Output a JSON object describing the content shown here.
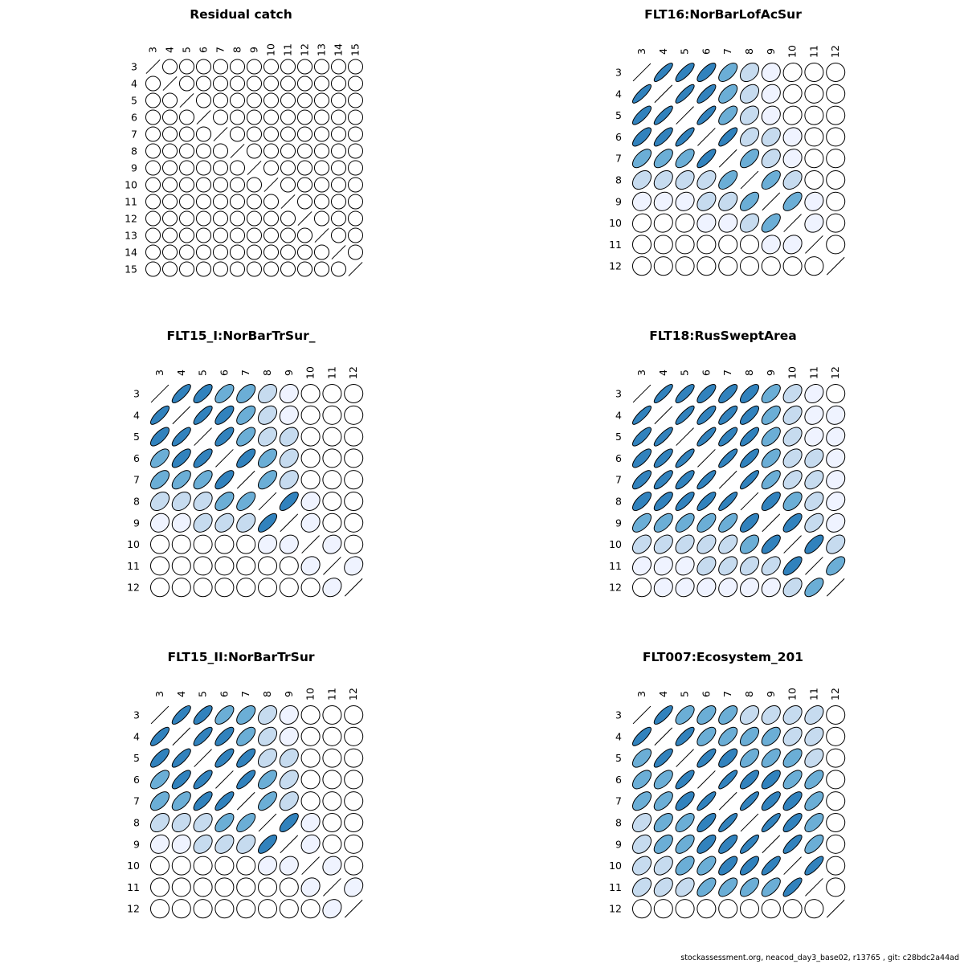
{
  "footer": "stockassessment.org, neacod_day3_base02, r13765 , git: c28bdc2a44ad",
  "palette": {
    "outline": "#000000",
    "levels": [
      "#ffffff",
      "#eff3ff",
      "#c6dbef",
      "#6baed6",
      "#3182bd"
    ]
  },
  "chart_data": [
    {
      "type": "heatmap",
      "subtype": "correlation-ellipse-matrix",
      "title": "Residual catch",
      "labels": [
        "3",
        "4",
        "5",
        "6",
        "7",
        "8",
        "9",
        "10",
        "11",
        "12",
        "13",
        "14",
        "15"
      ],
      "correlations": [
        [
          1,
          0,
          0,
          0,
          0,
          0,
          0,
          0,
          0,
          0,
          0,
          0,
          0
        ],
        [
          0,
          1,
          0,
          0,
          0,
          0,
          0,
          0,
          0,
          0,
          0,
          0,
          0
        ],
        [
          0,
          0,
          1,
          0,
          0,
          0,
          0,
          0,
          0,
          0,
          0,
          0,
          0
        ],
        [
          0,
          0,
          0,
          1,
          0,
          0,
          0,
          0,
          0,
          0,
          0,
          0,
          0
        ],
        [
          0,
          0,
          0,
          0,
          1,
          0,
          0,
          0,
          0,
          0,
          0,
          0,
          0
        ],
        [
          0,
          0,
          0,
          0,
          0,
          1,
          0,
          0,
          0,
          0,
          0,
          0,
          0
        ],
        [
          0,
          0,
          0,
          0,
          0,
          0,
          1,
          0,
          0,
          0,
          0,
          0,
          0
        ],
        [
          0,
          0,
          0,
          0,
          0,
          0,
          0,
          1,
          0,
          0,
          0,
          0,
          0
        ],
        [
          0,
          0,
          0,
          0,
          0,
          0,
          0,
          0,
          1,
          0,
          0,
          0,
          0
        ],
        [
          0,
          0,
          0,
          0,
          0,
          0,
          0,
          0,
          0,
          1,
          0,
          0,
          0
        ],
        [
          0,
          0,
          0,
          0,
          0,
          0,
          0,
          0,
          0,
          0,
          1,
          0,
          0
        ],
        [
          0,
          0,
          0,
          0,
          0,
          0,
          0,
          0,
          0,
          0,
          0,
          1,
          0
        ],
        [
          0,
          0,
          0,
          0,
          0,
          0,
          0,
          0,
          0,
          0,
          0,
          0,
          1
        ]
      ]
    },
    {
      "type": "heatmap",
      "subtype": "correlation-ellipse-matrix",
      "title": "FLT16:NorBarLofAcSur",
      "labels": [
        "3",
        "4",
        "5",
        "6",
        "7",
        "8",
        "9",
        "10",
        "11",
        "12"
      ],
      "correlations": [
        [
          1,
          0.85,
          0.8,
          0.75,
          0.6,
          0.35,
          0.12,
          0.08,
          0,
          0
        ],
        [
          0.85,
          1,
          0.85,
          0.8,
          0.6,
          0.35,
          0.15,
          0.08,
          0,
          0
        ],
        [
          0.8,
          0.85,
          1,
          0.85,
          0.62,
          0.35,
          0.15,
          0.08,
          0,
          0
        ],
        [
          0.75,
          0.8,
          0.85,
          1,
          0.8,
          0.4,
          0.35,
          0.1,
          0,
          0
        ],
        [
          0.6,
          0.6,
          0.62,
          0.8,
          1,
          0.6,
          0.35,
          0.12,
          0,
          0
        ],
        [
          0.35,
          0.35,
          0.35,
          0.4,
          0.6,
          1,
          0.6,
          0.35,
          0,
          0
        ],
        [
          0.12,
          0.15,
          0.15,
          0.35,
          0.35,
          0.6,
          1,
          0.6,
          0.12,
          0
        ],
        [
          0.08,
          0.08,
          0.08,
          0.1,
          0.12,
          0.35,
          0.6,
          1,
          0.15,
          0
        ],
        [
          0,
          0,
          0,
          0,
          0,
          0,
          0.12,
          0.15,
          1,
          0
        ],
        [
          0,
          0,
          0,
          0,
          0,
          0,
          0,
          0,
          0,
          1
        ]
      ]
    },
    {
      "type": "heatmap",
      "subtype": "correlation-ellipse-matrix",
      "title": "FLT15_I:NorBarTrSur_",
      "labels": [
        "3",
        "4",
        "5",
        "6",
        "7",
        "8",
        "9",
        "10",
        "11",
        "12"
      ],
      "correlations": [
        [
          1,
          0.8,
          0.72,
          0.6,
          0.55,
          0.35,
          0.15,
          0,
          0,
          0
        ],
        [
          0.8,
          1,
          0.8,
          0.72,
          0.6,
          0.35,
          0.15,
          0,
          0,
          0
        ],
        [
          0.72,
          0.8,
          1,
          0.75,
          0.6,
          0.35,
          0.3,
          0,
          0,
          0
        ],
        [
          0.6,
          0.72,
          0.75,
          1,
          0.72,
          0.55,
          0.35,
          0,
          0,
          0
        ],
        [
          0.55,
          0.6,
          0.6,
          0.72,
          1,
          0.6,
          0.35,
          0,
          0,
          0
        ],
        [
          0.35,
          0.35,
          0.35,
          0.55,
          0.6,
          1,
          0.72,
          0.15,
          0,
          0
        ],
        [
          0.15,
          0.15,
          0.3,
          0.35,
          0.35,
          0.72,
          1,
          0.15,
          0,
          0
        ],
        [
          0,
          0,
          0,
          0,
          0,
          0.15,
          0.15,
          1,
          0.15,
          0
        ],
        [
          0,
          0,
          0,
          0,
          0,
          0,
          0,
          0.15,
          1,
          0.2
        ],
        [
          0,
          0,
          0,
          0,
          0,
          0,
          0,
          0,
          0.2,
          1
        ]
      ]
    },
    {
      "type": "heatmap",
      "subtype": "correlation-ellipse-matrix",
      "title": "FLT18:RusSweptArea",
      "labels": [
        "3",
        "4",
        "5",
        "6",
        "7",
        "8",
        "9",
        "10",
        "11",
        "12"
      ],
      "correlations": [
        [
          1,
          0.85,
          0.8,
          0.75,
          0.75,
          0.7,
          0.6,
          0.4,
          0.2,
          0
        ],
        [
          0.85,
          1,
          0.85,
          0.8,
          0.8,
          0.75,
          0.6,
          0.4,
          0.2,
          0.1
        ],
        [
          0.8,
          0.85,
          1,
          0.85,
          0.8,
          0.8,
          0.6,
          0.4,
          0.2,
          0.15
        ],
        [
          0.75,
          0.8,
          0.85,
          1,
          0.85,
          0.8,
          0.6,
          0.4,
          0.35,
          0.15
        ],
        [
          0.75,
          0.8,
          0.8,
          0.85,
          1,
          0.85,
          0.65,
          0.45,
          0.4,
          0.15
        ],
        [
          0.7,
          0.75,
          0.8,
          0.8,
          0.85,
          1,
          0.7,
          0.5,
          0.4,
          0.2
        ],
        [
          0.6,
          0.6,
          0.6,
          0.6,
          0.65,
          0.7,
          1,
          0.7,
          0.45,
          0.2
        ],
        [
          0.4,
          0.4,
          0.4,
          0.4,
          0.45,
          0.5,
          0.7,
          1,
          0.7,
          0.4
        ],
        [
          0.2,
          0.2,
          0.2,
          0.35,
          0.4,
          0.4,
          0.45,
          0.7,
          1,
          0.6
        ],
        [
          0,
          0.1,
          0.15,
          0.15,
          0.15,
          0.2,
          0.2,
          0.4,
          0.6,
          1
        ]
      ]
    },
    {
      "type": "heatmap",
      "subtype": "correlation-ellipse-matrix",
      "title": "FLT15_II:NorBarTrSur",
      "labels": [
        "3",
        "4",
        "5",
        "6",
        "7",
        "8",
        "9",
        "10",
        "11",
        "12"
      ],
      "correlations": [
        [
          1,
          0.8,
          0.75,
          0.62,
          0.55,
          0.35,
          0.15,
          0,
          0,
          0
        ],
        [
          0.8,
          1,
          0.8,
          0.75,
          0.6,
          0.35,
          0.15,
          0,
          0,
          0
        ],
        [
          0.75,
          0.8,
          1,
          0.78,
          0.75,
          0.4,
          0.35,
          0,
          0,
          0
        ],
        [
          0.62,
          0.75,
          0.78,
          1,
          0.8,
          0.6,
          0.4,
          0,
          0,
          0
        ],
        [
          0.55,
          0.6,
          0.75,
          0.8,
          1,
          0.65,
          0.4,
          0,
          0,
          0
        ],
        [
          0.35,
          0.35,
          0.4,
          0.6,
          0.65,
          1,
          0.72,
          0.15,
          0,
          0
        ],
        [
          0.15,
          0.15,
          0.35,
          0.4,
          0.4,
          0.72,
          1,
          0.15,
          0,
          0
        ],
        [
          0,
          0,
          0,
          0,
          0,
          0.15,
          0.15,
          1,
          0.15,
          0
        ],
        [
          0,
          0,
          0,
          0,
          0,
          0,
          0,
          0.15,
          1,
          0.2
        ],
        [
          0,
          0,
          0,
          0,
          0,
          0,
          0,
          0,
          0.2,
          1
        ]
      ]
    },
    {
      "type": "heatmap",
      "subtype": "correlation-ellipse-matrix",
      "title": "FLT007:Ecosystem_201",
      "labels": [
        "3",
        "4",
        "5",
        "6",
        "7",
        "8",
        "9",
        "10",
        "11",
        "12"
      ],
      "correlations": [
        [
          1,
          0.8,
          0.6,
          0.55,
          0.55,
          0.4,
          0.35,
          0.35,
          0.4,
          0
        ],
        [
          0.8,
          1,
          0.8,
          0.6,
          0.6,
          0.55,
          0.55,
          0.4,
          0.4,
          0
        ],
        [
          0.6,
          0.8,
          1,
          0.8,
          0.7,
          0.6,
          0.6,
          0.55,
          0.4,
          0
        ],
        [
          0.55,
          0.6,
          0.8,
          1,
          0.85,
          0.75,
          0.7,
          0.6,
          0.6,
          0
        ],
        [
          0.55,
          0.6,
          0.7,
          0.85,
          1,
          0.85,
          0.75,
          0.7,
          0.6,
          0
        ],
        [
          0.4,
          0.55,
          0.6,
          0.75,
          0.85,
          1,
          0.85,
          0.75,
          0.6,
          0
        ],
        [
          0.35,
          0.55,
          0.6,
          0.7,
          0.75,
          0.85,
          1,
          0.8,
          0.65,
          0
        ],
        [
          0.35,
          0.4,
          0.55,
          0.6,
          0.7,
          0.75,
          0.8,
          1,
          0.8,
          0
        ],
        [
          0.4,
          0.4,
          0.4,
          0.6,
          0.6,
          0.6,
          0.65,
          0.8,
          1,
          0
        ],
        [
          0,
          0,
          0,
          0,
          0,
          0,
          0,
          0,
          0,
          1
        ]
      ]
    }
  ]
}
